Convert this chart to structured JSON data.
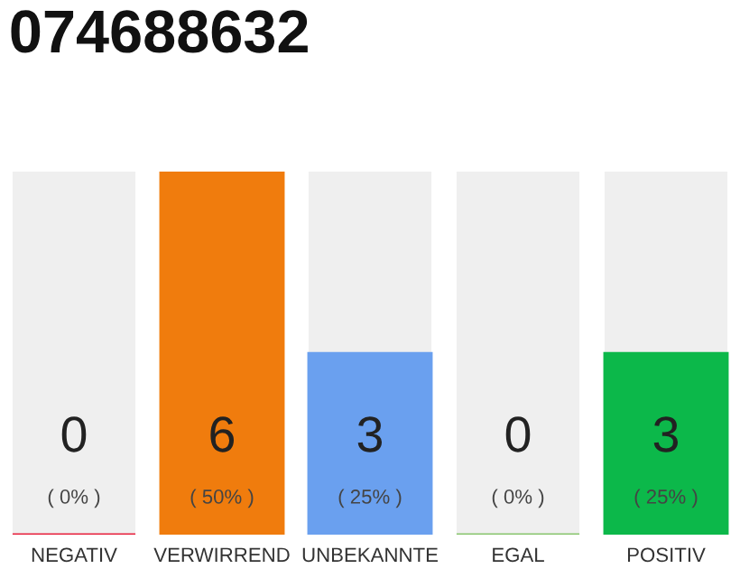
{
  "chart_data": {
    "type": "bar",
    "title": "074688632",
    "categories": [
      "NEGATIV",
      "VERWIRREND",
      "UNBEKANNTE",
      "EGAL",
      "POSITIV"
    ],
    "values": [
      0,
      6,
      3,
      0,
      3
    ],
    "colors": [
      "#e8203c",
      "#f07c0d",
      "#6aa0ef",
      "#88c66e",
      "#0cb84a"
    ],
    "value_labels": [
      "0\n( 0% )",
      "6\n( 50% )",
      "3\n( 25% )",
      "0\n( 0% )",
      "3\n( 25% )"
    ],
    "ylim": [
      0,
      6
    ],
    "grid": false,
    "legend": false
  }
}
